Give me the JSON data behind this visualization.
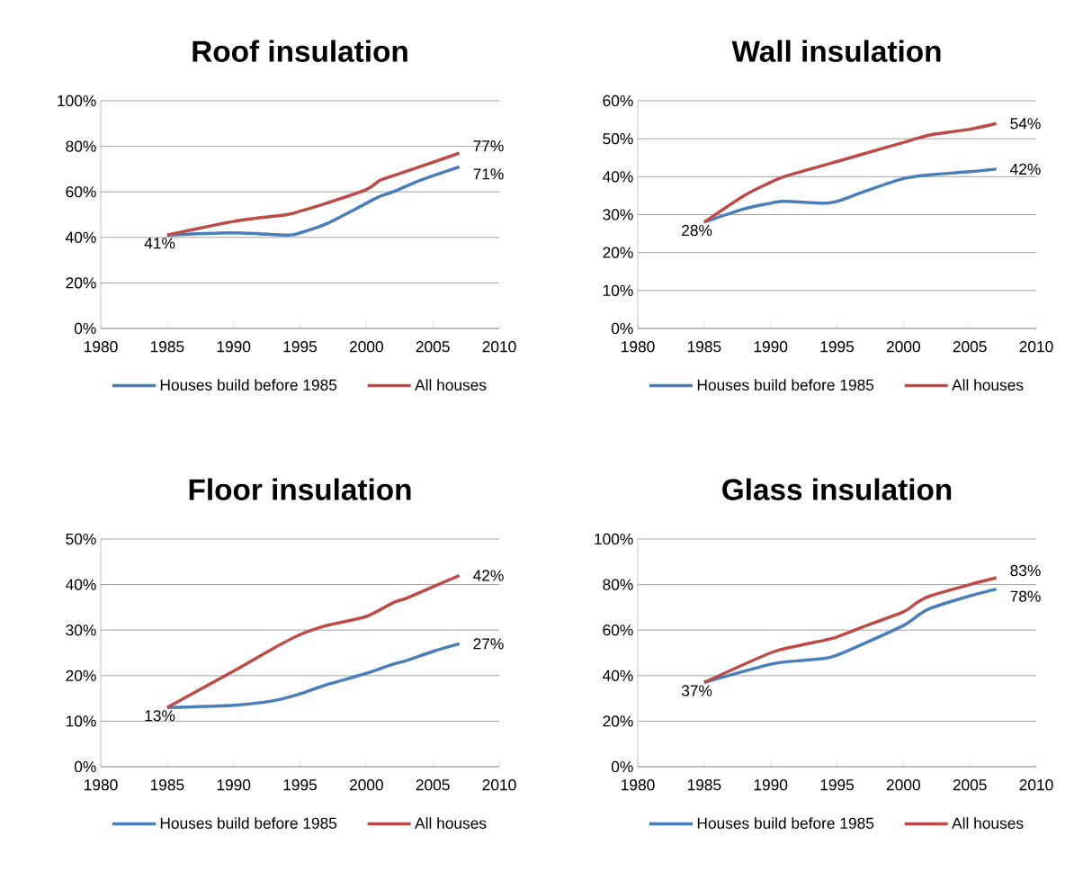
{
  "chart_data": [
    {
      "type": "line",
      "title": "Roof insulation",
      "x": [
        1985,
        1990,
        1994,
        1995,
        1997,
        2000,
        2001,
        2002,
        2004,
        2005,
        2007
      ],
      "series": [
        {
          "name": "Houses build before 1985",
          "color": "#4a7ebb",
          "values": [
            41,
            42,
            41,
            42,
            46,
            55,
            58,
            60,
            65,
            67,
            71
          ],
          "value_labels": [
            "41%",
            null,
            null,
            null,
            null,
            null,
            null,
            null,
            null,
            null,
            "71%"
          ]
        },
        {
          "name": "All houses",
          "color": "#be4b48",
          "values": [
            41,
            47,
            50,
            51.5,
            55,
            61,
            65,
            67,
            71,
            73,
            77
          ],
          "value_labels": [
            null,
            null,
            null,
            null,
            null,
            null,
            null,
            null,
            null,
            null,
            "77%"
          ]
        }
      ],
      "xlim": [
        1980,
        2010
      ],
      "xticks": [
        1980,
        1985,
        1990,
        1995,
        2000,
        2005,
        2010
      ],
      "ylim": [
        0,
        100
      ],
      "yticks": [
        {
          "value": 0,
          "label": "0%"
        },
        {
          "value": 20,
          "label": "20%"
        },
        {
          "value": 40,
          "label": "40%"
        },
        {
          "value": 60,
          "label": "60%"
        },
        {
          "value": 80,
          "label": "80%"
        },
        {
          "value": 100,
          "label": "100%"
        }
      ],
      "grid": "y",
      "legend": "bottom"
    },
    {
      "type": "line",
      "title": "Wall insulation",
      "x": [
        1985,
        1988,
        1990,
        1991,
        1994,
        1995,
        1997,
        2000,
        2002,
        2005,
        2007
      ],
      "series": [
        {
          "name": "Houses build before 1985",
          "color": "#4a7ebb",
          "values": [
            28,
            31.5,
            33,
            33.5,
            33,
            33.5,
            36,
            39.5,
            40.5,
            41.3,
            42
          ],
          "value_labels": [
            "28%",
            null,
            null,
            null,
            null,
            null,
            null,
            null,
            null,
            null,
            "42%"
          ]
        },
        {
          "name": "All houses",
          "color": "#be4b48",
          "values": [
            28,
            35,
            38.5,
            40,
            43,
            44,
            46,
            49,
            51,
            52.5,
            54
          ],
          "value_labels": [
            null,
            null,
            null,
            null,
            null,
            null,
            null,
            null,
            null,
            null,
            "54%"
          ]
        }
      ],
      "xlim": [
        1980,
        2010
      ],
      "xticks": [
        1980,
        1985,
        1990,
        1995,
        2000,
        2005,
        2010
      ],
      "ylim": [
        0,
        60
      ],
      "yticks": [
        {
          "value": 0,
          "label": "0%"
        },
        {
          "value": 10,
          "label": "10%"
        },
        {
          "value": 20,
          "label": "20%"
        },
        {
          "value": 30,
          "label": "30%"
        },
        {
          "value": 40,
          "label": "40%"
        },
        {
          "value": 50,
          "label": "50%"
        },
        {
          "value": 60,
          "label": "60%"
        }
      ],
      "grid": "y",
      "legend": "bottom"
    },
    {
      "type": "line",
      "title": "Floor insulation",
      "x": [
        1985,
        1990,
        1993,
        1995,
        1997,
        2000,
        2002,
        2003,
        2005,
        2007
      ],
      "series": [
        {
          "name": "Houses build before 1985",
          "color": "#4a7ebb",
          "values": [
            13,
            13.5,
            14.5,
            16,
            18,
            20.5,
            22.5,
            23.3,
            25.3,
            27
          ],
          "value_labels": [
            "13%",
            null,
            null,
            null,
            null,
            null,
            null,
            null,
            null,
            "27%"
          ]
        },
        {
          "name": "All houses",
          "color": "#be4b48",
          "values": [
            13,
            21,
            26,
            29,
            31,
            33,
            36,
            37,
            39.5,
            42
          ],
          "value_labels": [
            null,
            null,
            null,
            null,
            null,
            null,
            null,
            null,
            null,
            "42%"
          ]
        }
      ],
      "xlim": [
        1980,
        2010
      ],
      "xticks": [
        1980,
        1985,
        1990,
        1995,
        2000,
        2005,
        2010
      ],
      "ylim": [
        0,
        50
      ],
      "yticks": [
        {
          "value": 0,
          "label": "0%"
        },
        {
          "value": 10,
          "label": "10%"
        },
        {
          "value": 20,
          "label": "20%"
        },
        {
          "value": 30,
          "label": "30%"
        },
        {
          "value": 40,
          "label": "40%"
        },
        {
          "value": 50,
          "label": "50%"
        }
      ],
      "grid": "y",
      "legend": "bottom"
    },
    {
      "type": "line",
      "title": "Glass insulation",
      "x": [
        1985,
        1990,
        1992,
        1994,
        1995,
        1997,
        2000,
        2001,
        2002,
        2005,
        2007
      ],
      "series": [
        {
          "name": "Houses build before 1985",
          "color": "#4a7ebb",
          "values": [
            37,
            45,
            46.5,
            47.5,
            49,
            54,
            62,
            66,
            69.5,
            75,
            78
          ],
          "value_labels": [
            "37%",
            null,
            null,
            null,
            null,
            null,
            null,
            null,
            null,
            null,
            "78%"
          ]
        },
        {
          "name": "All houses",
          "color": "#be4b48",
          "values": [
            37,
            50,
            53,
            55.5,
            57,
            61.5,
            68,
            72,
            75,
            80,
            83
          ],
          "value_labels": [
            null,
            null,
            null,
            null,
            null,
            null,
            null,
            null,
            null,
            null,
            "83%"
          ]
        }
      ],
      "xlim": [
        1980,
        2010
      ],
      "xticks": [
        1980,
        1985,
        1990,
        1995,
        2000,
        2005,
        2010
      ],
      "ylim": [
        0,
        100
      ],
      "yticks": [
        {
          "value": 0,
          "label": "0%"
        },
        {
          "value": 20,
          "label": "20%"
        },
        {
          "value": 40,
          "label": "40%"
        },
        {
          "value": 60,
          "label": "60%"
        },
        {
          "value": 80,
          "label": "80%"
        },
        {
          "value": 100,
          "label": "100%"
        }
      ],
      "grid": "y",
      "legend": "bottom"
    }
  ]
}
